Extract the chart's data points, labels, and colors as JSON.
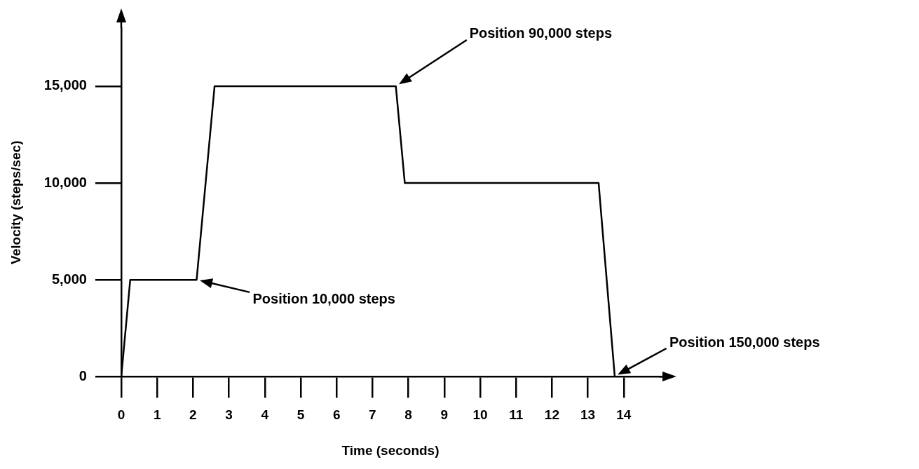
{
  "chart_data": {
    "type": "line",
    "xlabel": "Time (seconds)",
    "ylabel": "Velocity (steps/sec)",
    "x": [
      0,
      0.25,
      2.1,
      2.6,
      7.65,
      7.9,
      13.3,
      13.75
    ],
    "series": [
      {
        "color": "#000000",
        "values": [
          0,
          5000,
          5000,
          15000,
          15000,
          10000,
          10000,
          0
        ]
      }
    ],
    "xlim": [
      0,
      15
    ],
    "xticks": [
      0,
      1,
      2,
      3,
      4,
      5,
      6,
      7,
      8,
      9,
      10,
      11,
      12,
      13,
      14
    ],
    "ylim": [
      0,
      18000
    ],
    "yticks": [
      {
        "value": 0,
        "label": "0"
      },
      {
        "value": 5000,
        "label": "5,000"
      },
      {
        "value": 10000,
        "label": "10,000"
      },
      {
        "value": 15000,
        "label": "15,000"
      }
    ],
    "grid": false,
    "legend": false,
    "marker": "none",
    "line_style": "solid",
    "annotations": [
      "Position 10,000 steps",
      "Position 90,000 steps",
      "Position 150,000 steps"
    ]
  }
}
